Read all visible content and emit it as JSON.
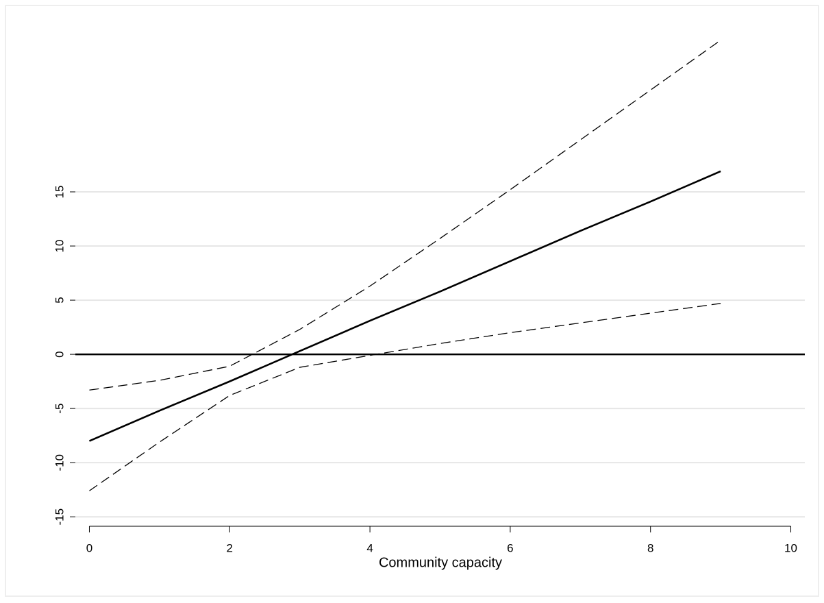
{
  "chart_data": {
    "type": "line",
    "x_label": "Community capacity",
    "x": [
      0,
      1,
      2,
      3,
      4,
      5,
      6,
      7,
      8,
      9
    ],
    "series": [
      {
        "color": "#000000",
        "dashed": false,
        "values": [
          -8,
          -5.2,
          -2.5,
          0.3,
          3.1,
          5.8,
          8.6,
          11.4,
          14.1,
          16.9
        ]
      },
      {
        "color": "#000000",
        "dashed": true,
        "values": [
          -3.3,
          -2.4,
          -1.1,
          2.3,
          6.3,
          10.7,
          15.2,
          19.8,
          24.4,
          29.0
        ]
      },
      {
        "color": "#000000",
        "dashed": true,
        "values": [
          -12.6,
          -8.1,
          -3.8,
          -1.2,
          -0.1,
          1.0,
          2.0,
          2.9,
          3.8,
          4.7
        ]
      }
    ],
    "reference_line": 0,
    "xlim": [
      -0.2,
      10.2
    ],
    "ylim": [
      -16,
      30.5
    ],
    "xticks": [
      0,
      2,
      4,
      6,
      8,
      10
    ],
    "yticks": [
      -15,
      -10,
      -5,
      0,
      5,
      10,
      15
    ],
    "grid": true
  }
}
